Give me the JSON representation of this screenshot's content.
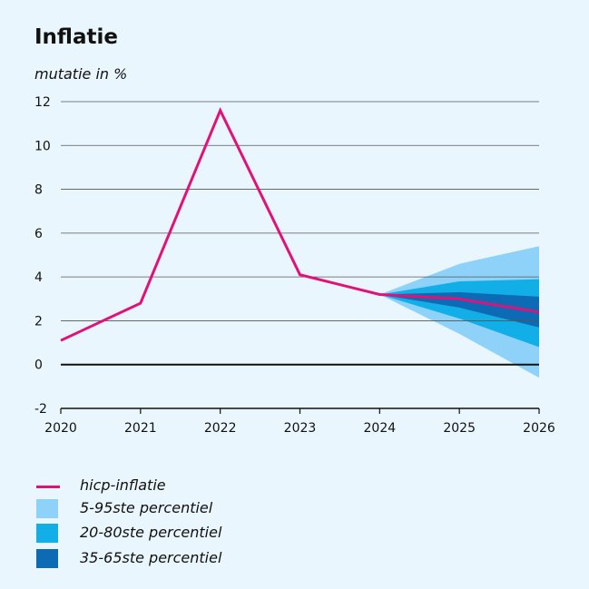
{
  "chart_data": {
    "type": "line",
    "title": "Inflatie",
    "ylabel": "mutatie in %",
    "xlabel": "",
    "x": [
      2020,
      2021,
      2022,
      2023,
      2024,
      2025,
      2026
    ],
    "ylim": [
      -2,
      12
    ],
    "yticks": [
      -2,
      0,
      2,
      4,
      6,
      8,
      10,
      12
    ],
    "grid": true,
    "series": [
      {
        "name": "hicp-inflatie",
        "color": "#e0127a",
        "x": [
          2020,
          2021,
          2022,
          2023,
          2024,
          2025,
          2026
        ],
        "values": [
          1.1,
          2.8,
          11.6,
          4.1,
          3.2,
          3.0,
          2.4
        ]
      }
    ],
    "bands": [
      {
        "name": "5-95ste percentiel",
        "color": "#8ed2fa",
        "x": [
          2024,
          2025,
          2026
        ],
        "lower": [
          3.2,
          1.4,
          -0.6
        ],
        "upper": [
          3.2,
          4.6,
          5.4
        ]
      },
      {
        "name": "20-80ste percentiel",
        "color": "#11aee8",
        "x": [
          2024,
          2025,
          2026
        ],
        "lower": [
          3.2,
          2.1,
          0.8
        ],
        "upper": [
          3.2,
          3.8,
          3.9
        ]
      },
      {
        "name": "35-65ste percentiel",
        "color": "#0d6ab4",
        "x": [
          2024,
          2025,
          2026
        ],
        "lower": [
          3.2,
          2.6,
          1.7
        ],
        "upper": [
          3.2,
          3.3,
          3.1
        ]
      }
    ],
    "legend_position": "bottom-left"
  },
  "legend": {
    "items": [
      {
        "label": "hicp-inflatie",
        "kind": "line",
        "color": "#e0127a"
      },
      {
        "label": "5-95ste percentiel",
        "kind": "swatch",
        "color": "#8ed2fa"
      },
      {
        "label": "20-80ste percentiel",
        "kind": "swatch",
        "color": "#11aee8"
      },
      {
        "label": "35-65ste percentiel",
        "kind": "swatch",
        "color": "#0d6ab4"
      }
    ]
  }
}
